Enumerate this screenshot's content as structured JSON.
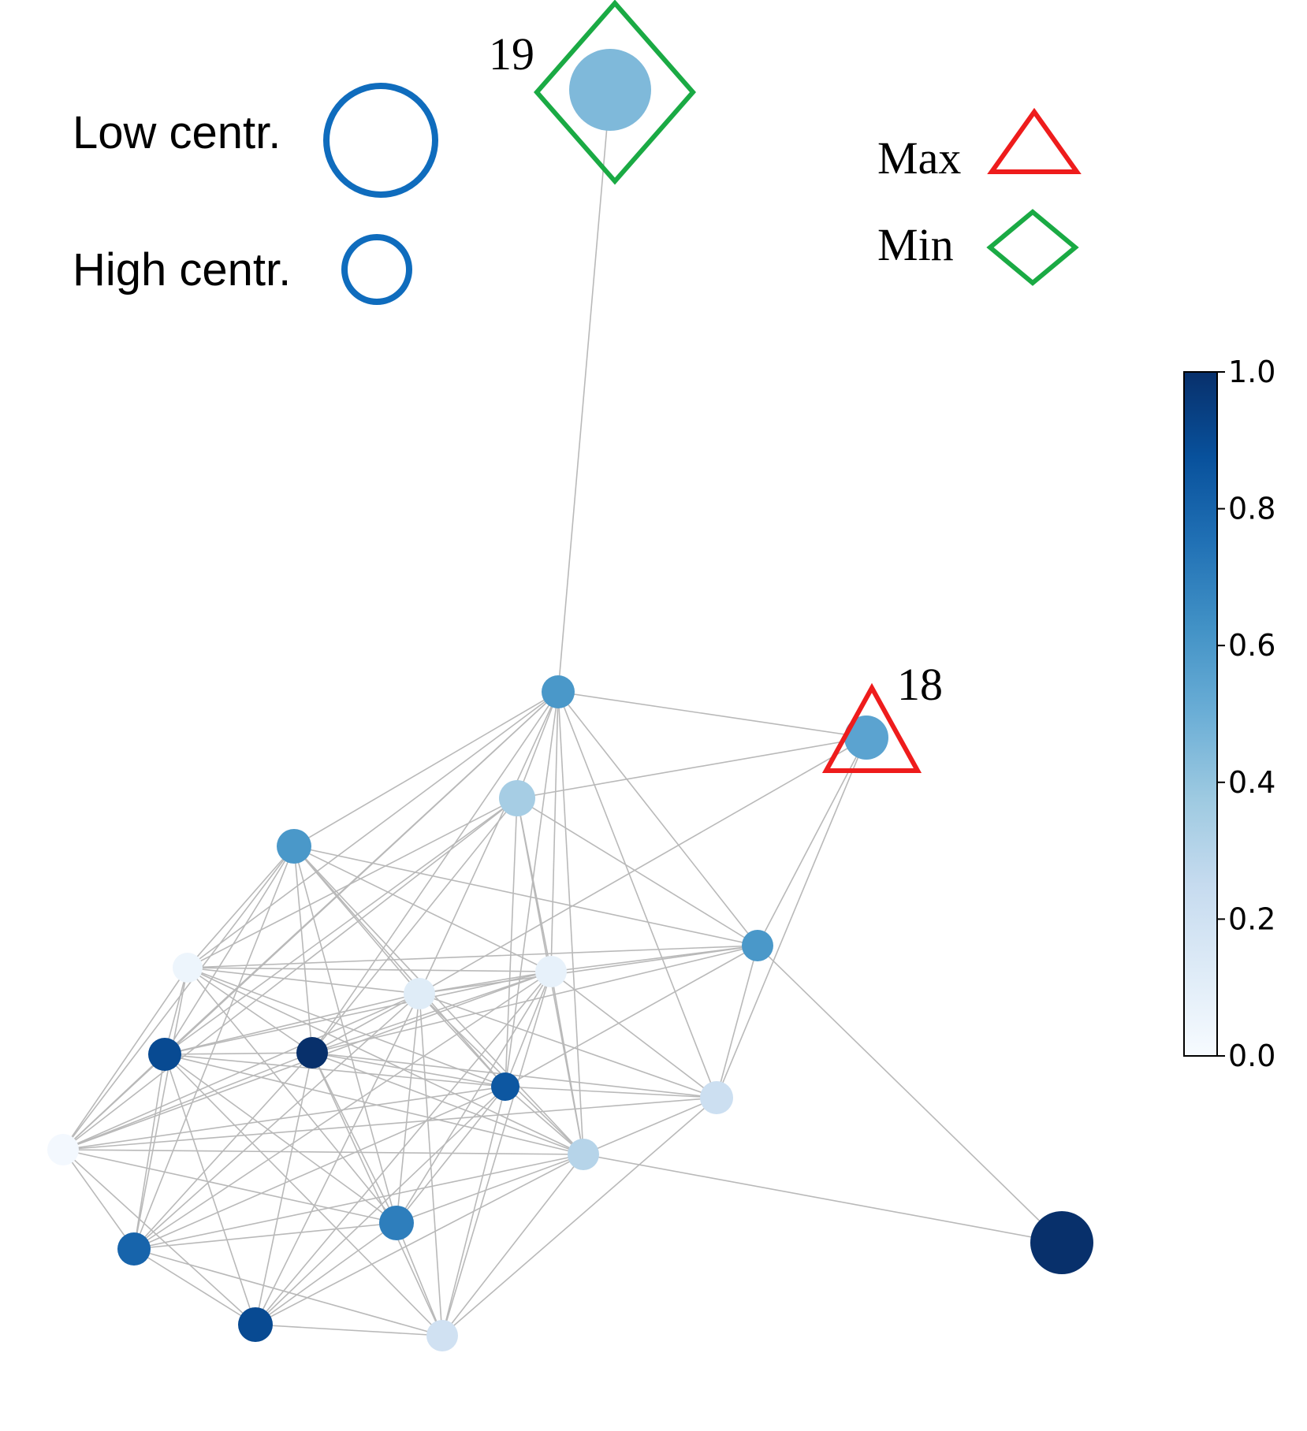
{
  "legend": {
    "size_items": [
      {
        "label": "Low centr."
      },
      {
        "label": "High centr."
      }
    ],
    "marker_items": [
      {
        "label": "Max",
        "shape": "triangle",
        "color": "#ee1c1c"
      },
      {
        "label": "Min",
        "shape": "diamond",
        "color": "#1aaa44"
      }
    ]
  },
  "highlighted_nodes": {
    "max_label": "18",
    "min_label": "19"
  },
  "colorbar": {
    "colormap": "Blues",
    "min": 0.0,
    "max": 1.0,
    "ticks": [
      "0.0",
      "0.2",
      "0.4",
      "0.6",
      "0.8",
      "1.0"
    ]
  },
  "colors": {
    "edge": "#b9b9b9",
    "legend_circle": "#0f6cbd",
    "max_marker": "#ee1c1c",
    "min_marker": "#1aaa44"
  },
  "nodes": [
    {
      "id": "19",
      "value": 0.45,
      "size": "largest"
    },
    {
      "id": "18",
      "value": 0.55,
      "size": "medium"
    },
    {
      "id": "a",
      "value": 0.6
    },
    {
      "id": "b",
      "value": 0.35
    },
    {
      "id": "c",
      "value": 0.6
    },
    {
      "id": "d",
      "value": 0.6
    },
    {
      "id": "e",
      "value": 0.05
    },
    {
      "id": "f",
      "value": 0.12
    },
    {
      "id": "g",
      "value": 0.08
    },
    {
      "id": "h",
      "value": 0.9
    },
    {
      "id": "i",
      "value": 1.0
    },
    {
      "id": "j",
      "value": 0.85
    },
    {
      "id": "k",
      "value": 0.22
    },
    {
      "id": "l",
      "value": 0.02
    },
    {
      "id": "m",
      "value": 0.3
    },
    {
      "id": "n",
      "value": 0.7
    },
    {
      "id": "o",
      "value": 0.8
    },
    {
      "id": "p",
      "value": 0.9
    },
    {
      "id": "q",
      "value": 0.2
    },
    {
      "id": "r",
      "value": 1.0,
      "size": "large"
    }
  ]
}
